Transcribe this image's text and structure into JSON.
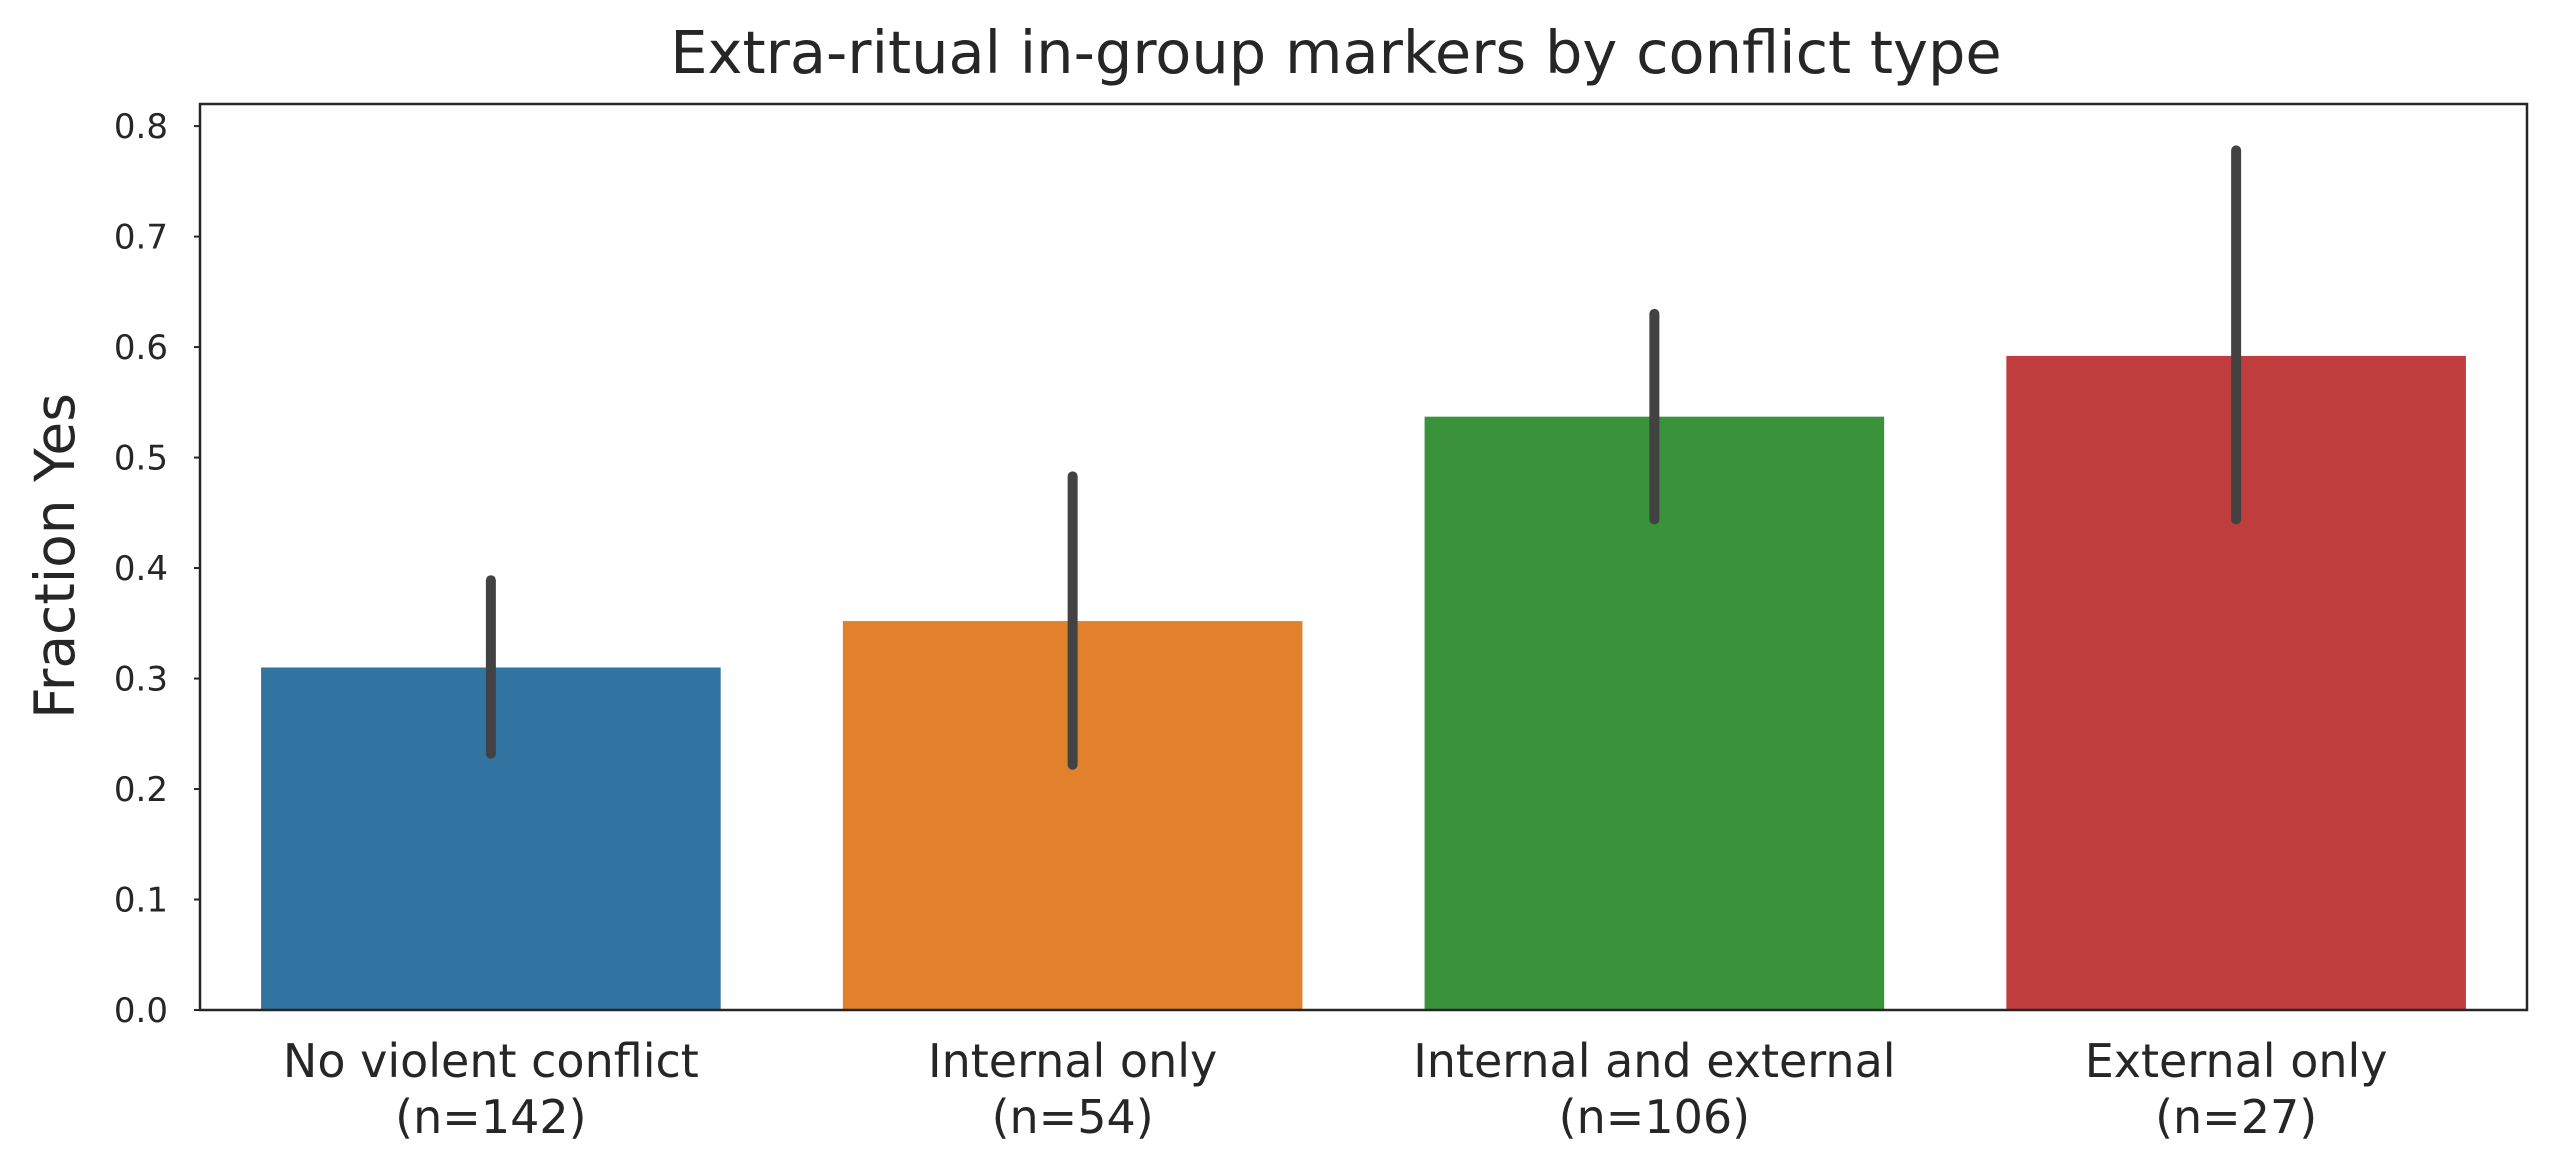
{
  "chart_data": {
    "type": "bar",
    "title": "Extra-ritual in-group markers by conflict type",
    "xlabel": "",
    "ylabel": "Fraction Yes",
    "ylim": [
      0,
      0.82
    ],
    "yticks": [
      "0.0",
      "0.1",
      "0.2",
      "0.3",
      "0.4",
      "0.5",
      "0.6",
      "0.7",
      "0.8"
    ],
    "categories": [
      {
        "name": "No violent conflict",
        "count_label": "(n=142)"
      },
      {
        "name": "Internal only",
        "count_label": "(n=54)"
      },
      {
        "name": "Internal and external",
        "count_label": "(n=106)"
      },
      {
        "name": "External only",
        "count_label": "(n=27)"
      }
    ],
    "values": [
      0.31,
      0.352,
      0.537,
      0.592
    ],
    "error_bars": [
      [
        0.232,
        0.389
      ],
      [
        0.222,
        0.483
      ],
      [
        0.444,
        0.63
      ],
      [
        0.444,
        0.778
      ]
    ],
    "colors": [
      "#3274a1",
      "#e1812c",
      "#3a923a",
      "#c03d3e"
    ],
    "error_bar_color": "#424242",
    "grid": false,
    "legend": "none"
  }
}
